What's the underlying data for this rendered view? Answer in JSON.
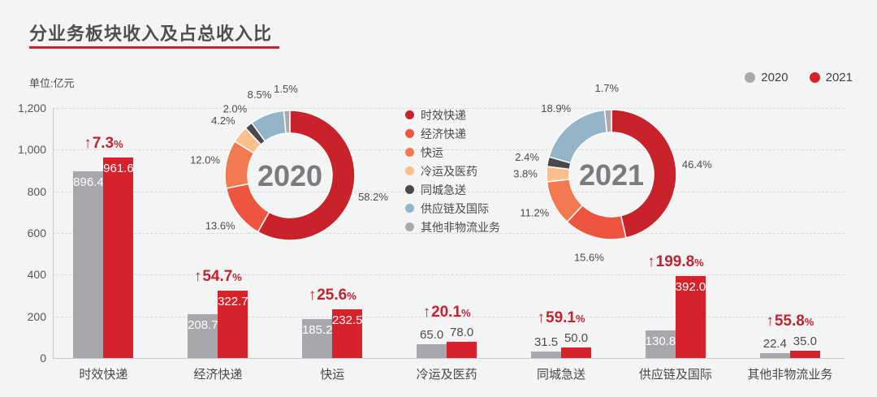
{
  "title": "分业务板块收入及占总收入比",
  "unit_label": "单位:亿元",
  "arrow": "↑",
  "colors": {
    "background": "#f3f4f4",
    "title_underline": "#c9242d",
    "accent_red": "#c2232e",
    "bar_2020": "#a6a8ab",
    "bar_2021": "#d7222b",
    "grid": "#d6d7d8",
    "text": "#4a4b4d"
  },
  "year_legend": [
    {
      "label": "2020",
      "color": "#a6a8ab"
    },
    {
      "label": "2021",
      "color": "#d7222b"
    }
  ],
  "segments": [
    {
      "name": "时效快递",
      "color": "#c8222a"
    },
    {
      "name": "经济快递",
      "color": "#ee5540"
    },
    {
      "name": "快运",
      "color": "#f37a50"
    },
    {
      "name": "冷运及医药",
      "color": "#f9c08d"
    },
    {
      "name": "同城急送",
      "color": "#47494c"
    },
    {
      "name": "供应链及国际",
      "color": "#93b5c7"
    },
    {
      "name": "其他非物流业务",
      "color": "#a8aaad"
    }
  ],
  "chart_data": [
    {
      "type": "bar",
      "title": "分业务板块收入及占总收入比",
      "ylabel": "亿元",
      "categories": [
        "时效快递",
        "经济快递",
        "快运",
        "冷运及医药",
        "同城急送",
        "供应链及国际",
        "其他非物流业务"
      ],
      "series": [
        {
          "name": "2020",
          "color": "#a6a8ab",
          "values": [
            896.4,
            208.7,
            185.2,
            65.0,
            31.5,
            130.8,
            22.4
          ]
        },
        {
          "name": "2021",
          "color": "#d7222b",
          "values": [
            961.6,
            322.7,
            232.5,
            78.0,
            50.0,
            392.0,
            35.0
          ]
        }
      ],
      "growth_labels": [
        "7.3%",
        "54.7%",
        "25.6%",
        "20.1%",
        "59.1%",
        "199.8%",
        "55.8%"
      ],
      "labels_inside": [
        true,
        true,
        true,
        false,
        false,
        true,
        false
      ],
      "ylim": [
        0,
        1200
      ],
      "yticks": [
        {
          "value": 0,
          "label": "0"
        },
        {
          "value": 200,
          "label": "200"
        },
        {
          "value": 400,
          "label": "400"
        },
        {
          "value": 600,
          "label": "600"
        },
        {
          "value": 800,
          "label": "800"
        },
        {
          "value": 1000,
          "label": "1,000"
        },
        {
          "value": 1200,
          "label": "1,200"
        }
      ],
      "grid": "dashed-horizontal",
      "legend_position": "top-right"
    },
    {
      "type": "pie",
      "subtype": "donut",
      "center_label": "2020",
      "slices": [
        {
          "name": "时效快递",
          "value": 58.2,
          "label": "58.2%"
        },
        {
          "name": "经济快递",
          "value": 13.6,
          "label": "13.6%"
        },
        {
          "name": "快运",
          "value": 12.0,
          "label": "12.0%"
        },
        {
          "name": "冷运及医药",
          "value": 4.2,
          "label": "4.2%"
        },
        {
          "name": "同城急送",
          "value": 2.0,
          "label": "2.0%"
        },
        {
          "name": "供应链及国际",
          "value": 8.5,
          "label": "8.5%"
        },
        {
          "name": "其他非物流业务",
          "value": 1.5,
          "label": "1.5%"
        }
      ]
    },
    {
      "type": "pie",
      "subtype": "donut",
      "center_label": "2021",
      "slices": [
        {
          "name": "时效快递",
          "value": 46.4,
          "label": "46.4%"
        },
        {
          "name": "经济快递",
          "value": 15.6,
          "label": "15.6%"
        },
        {
          "name": "快运",
          "value": 11.2,
          "label": "11.2%"
        },
        {
          "name": "冷运及医药",
          "value": 3.8,
          "label": "3.8%"
        },
        {
          "name": "同城急送",
          "value": 2.4,
          "label": "2.4%"
        },
        {
          "name": "供应链及国际",
          "value": 18.9,
          "label": "18.9%"
        },
        {
          "name": "其他非物流业务",
          "value": 1.7,
          "label": "1.7%"
        }
      ]
    }
  ]
}
